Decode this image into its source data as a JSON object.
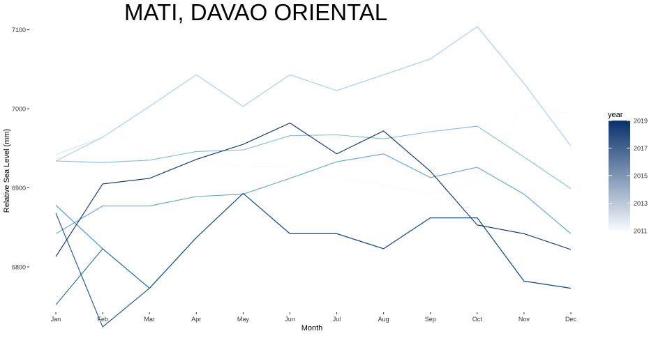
{
  "chart_data": {
    "type": "line",
    "title": "MATI, DAVAO ORIENTAL",
    "xlabel": "Month",
    "ylabel": "Relative Sea Level (mm)",
    "categories": [
      "Jan",
      "Feb",
      "Mar",
      "Apr",
      "May",
      "Jun",
      "Jul",
      "Aug",
      "Sep",
      "Oct",
      "Nov",
      "Dec"
    ],
    "ylim": [
      6740,
      7120
    ],
    "yticks": [
      6800,
      6900,
      7000,
      7100
    ],
    "grid": false,
    "legend": {
      "title": "year",
      "placement": "right",
      "range": [
        2011,
        2019
      ],
      "ticks": [
        2011,
        2013,
        2015,
        2017,
        2019
      ],
      "color_low": "#f7fbff",
      "color_high": "#08306b"
    },
    "series": [
      {
        "year": 2011,
        "values": [
          6940,
          6982,
          6944,
          6937,
          6926,
          6927,
          6912,
          6904,
          6892,
          6907,
          7004,
          6994
        ]
      },
      {
        "year": 2012,
        "values": [
          6942,
          6964,
          7003,
          7043,
          7003,
          7043,
          7023,
          7043,
          7063,
          7104,
          7032,
          6953
        ]
      },
      {
        "year": 2013,
        "values": [
          6934,
          6964,
          7003,
          7043,
          7003,
          7043,
          7023,
          7043,
          7063,
          7104,
          7032,
          6953
        ]
      },
      {
        "year": 2014,
        "values": [
          6934,
          6932,
          6935,
          6946,
          6948,
          6966,
          6967,
          6962,
          6971,
          6978,
          6939,
          6899
        ]
      },
      {
        "year": 2015,
        "values": [
          6842,
          6877,
          6877,
          6889,
          6892,
          6912,
          6933,
          6943,
          6913,
          6926,
          6892,
          6842
        ]
      },
      {
        "year": 2016,
        "values": [
          6878,
          6823,
          6773,
          6837,
          6893,
          6842,
          6842,
          6823,
          6862,
          6862,
          6782,
          6773
        ]
      },
      {
        "year": 2017,
        "values": [
          6752,
          6823,
          6773,
          6837,
          6893,
          6842,
          6842,
          6823,
          6862,
          6862,
          6782,
          6773
        ]
      },
      {
        "year": 2018,
        "values": [
          6868,
          6724,
          6773,
          6837,
          6893,
          6842,
          6842,
          6823,
          6862,
          6862,
          6782,
          6773
        ]
      },
      {
        "year": 2019,
        "values": [
          6813,
          6905,
          6912,
          6936,
          6955,
          6982,
          6943,
          6972,
          6921,
          6853,
          6842,
          6822
        ]
      }
    ]
  }
}
